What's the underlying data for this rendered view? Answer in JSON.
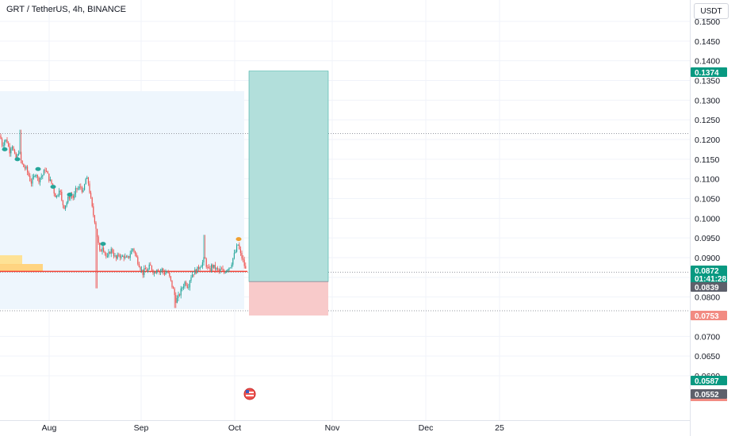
{
  "header": {
    "title": "GRT / TetherUS, 4h, BINANCE",
    "currency": "USDT"
  },
  "colors": {
    "up": "#26a69a",
    "down": "#ef5350",
    "target_zone": "#b2dfdb",
    "stop_zone": "#f8caca",
    "range_box": "#eef6fd",
    "level_line": "#f44336",
    "tag_green": "#089981",
    "tag_red": "#f28b82",
    "tag_gray": "#5d606b"
  },
  "chart_data": {
    "type": "candlestick",
    "symbol": "GRT / TetherUS",
    "interval": "4h",
    "exchange": "BINANCE",
    "y_axis": {
      "ticks": [
        "0.1500",
        "0.1450",
        "0.1400",
        "0.1350",
        "0.1300",
        "0.1250",
        "0.1200",
        "0.1150",
        "0.1100",
        "0.1050",
        "0.1000",
        "0.0950",
        "0.0900",
        "0.0850",
        "0.0800",
        "0.0700",
        "0.0650",
        "0.0600"
      ],
      "range": [
        0.0505,
        0.1535
      ]
    },
    "x_axis": {
      "ticks": [
        "Aug",
        "Sep",
        "Oct",
        "Nov",
        "Dec",
        "25"
      ]
    },
    "price_path": [
      [
        0,
        0.121
      ],
      [
        3,
        0.1185
      ],
      [
        6,
        0.12
      ],
      [
        9,
        0.1195
      ],
      [
        12,
        0.117
      ],
      [
        15,
        0.119
      ],
      [
        18,
        0.116
      ],
      [
        21,
        0.115
      ],
      [
        24,
        0.1175
      ],
      [
        27,
        0.114
      ],
      [
        30,
        0.113
      ],
      [
        33,
        0.1125
      ],
      [
        36,
        0.111
      ],
      [
        39,
        0.109
      ],
      [
        42,
        0.11
      ],
      [
        45,
        0.112
      ],
      [
        48,
        0.1095
      ],
      [
        51,
        0.1105
      ],
      [
        54,
        0.111
      ],
      [
        57,
        0.1125
      ],
      [
        60,
        0.111
      ],
      [
        63,
        0.1095
      ],
      [
        66,
        0.1085
      ],
      [
        69,
        0.106
      ],
      [
        72,
        0.1055
      ],
      [
        75,
        0.108
      ],
      [
        78,
        0.104
      ],
      [
        81,
        0.103
      ],
      [
        84,
        0.104
      ],
      [
        87,
        0.1055
      ],
      [
        90,
        0.106
      ],
      [
        93,
        0.105
      ],
      [
        96,
        0.1075
      ],
      [
        99,
        0.1075
      ],
      [
        102,
        0.108
      ],
      [
        105,
        0.1065
      ],
      [
        108,
        0.11
      ],
      [
        111,
        0.1095
      ],
      [
        114,
        0.1055
      ],
      [
        117,
        0.1015
      ],
      [
        120,
        0.099
      ],
      [
        123,
        0.095
      ],
      [
        126,
        0.091
      ],
      [
        129,
        0.093
      ],
      [
        132,
        0.0915
      ],
      [
        135,
        0.0895
      ],
      [
        138,
        0.0915
      ],
      [
        141,
        0.092
      ],
      [
        144,
        0.0905
      ],
      [
        147,
        0.0895
      ],
      [
        150,
        0.091
      ],
      [
        153,
        0.09
      ],
      [
        156,
        0.0905
      ],
      [
        159,
        0.0895
      ],
      [
        162,
        0.09
      ],
      [
        165,
        0.0915
      ],
      [
        168,
        0.0925
      ],
      [
        171,
        0.0905
      ],
      [
        174,
        0.089
      ],
      [
        177,
        0.0875
      ],
      [
        180,
        0.086
      ],
      [
        183,
        0.087
      ],
      [
        186,
        0.0865
      ],
      [
        189,
        0.088
      ],
      [
        192,
        0.087
      ],
      [
        195,
        0.086
      ],
      [
        198,
        0.0875
      ],
      [
        201,
        0.0865
      ],
      [
        204,
        0.087
      ],
      [
        207,
        0.086
      ],
      [
        210,
        0.0865
      ],
      [
        213,
        0.0855
      ],
      [
        216,
        0.0835
      ],
      [
        219,
        0.0815
      ],
      [
        222,
        0.079
      ],
      [
        225,
        0.08
      ],
      [
        228,
        0.0815
      ],
      [
        231,
        0.083
      ],
      [
        234,
        0.084
      ],
      [
        237,
        0.0825
      ],
      [
        240,
        0.085
      ],
      [
        243,
        0.086
      ],
      [
        246,
        0.0865
      ],
      [
        249,
        0.087
      ],
      [
        252,
        0.088
      ],
      [
        255,
        0.0885
      ],
      [
        258,
        0.09
      ],
      [
        261,
        0.0875
      ],
      [
        264,
        0.0865
      ],
      [
        267,
        0.088
      ],
      [
        270,
        0.0875
      ],
      [
        273,
        0.087
      ],
      [
        276,
        0.0865
      ],
      [
        279,
        0.087
      ],
      [
        282,
        0.086
      ],
      [
        285,
        0.087
      ],
      [
        288,
        0.0875
      ],
      [
        291,
        0.088
      ],
      [
        294,
        0.09
      ],
      [
        297,
        0.0915
      ],
      [
        300,
        0.0935
      ],
      [
        303,
        0.091
      ],
      [
        306,
        0.0895
      ],
      [
        309,
        0.0875
      ],
      [
        311,
        0.086
      ]
    ],
    "price_tags": [
      {
        "label": "0.1374",
        "value": 0.1374,
        "color_key": "tag_green"
      },
      {
        "label": "0.0872",
        "value": 0.0872,
        "color_key": "tag_green",
        "countdown": "01:41:28"
      },
      {
        "label": "0.0839",
        "value": 0.0839,
        "color_key": "tag_gray"
      },
      {
        "label": "0.0753",
        "value": 0.0753,
        "color_key": "tag_red"
      },
      {
        "label": "0.0587",
        "value": 0.0587,
        "color_key": "tag_green"
      },
      {
        "label": "0.0552",
        "value": 0.0552,
        "color_key": "tag_gray"
      }
    ],
    "position": {
      "target": 0.1374,
      "entry": 0.0839,
      "stop": 0.0753
    },
    "horizontal_level": 0.0865,
    "dotted_levels": [
      0.1215,
      0.0863,
      0.0765
    ]
  }
}
